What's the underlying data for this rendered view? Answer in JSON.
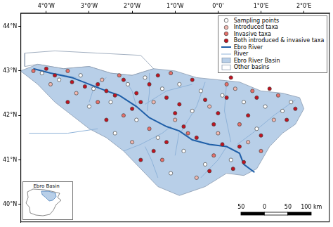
{
  "chart_data": {
    "type": "map",
    "xlim": [
      -4.6,
      2.6
    ],
    "xticks": [
      {
        "value": -4,
        "label": "4°0'W"
      },
      {
        "value": -3,
        "label": "3°0'W"
      },
      {
        "value": -2,
        "label": "2°0'W"
      },
      {
        "value": -1,
        "label": "1°0'W"
      },
      {
        "value": 0,
        "label": "0°0'"
      },
      {
        "value": 1,
        "label": "1°0'E"
      },
      {
        "value": 2,
        "label": "2°0'E"
      }
    ],
    "ylim": [
      39.6,
      44.3
    ],
    "yticks": [
      {
        "value": 40,
        "label": "40°N"
      },
      {
        "value": 41,
        "label": "41°N"
      },
      {
        "value": 42,
        "label": "42°N"
      },
      {
        "value": 43,
        "label": "43°N"
      },
      {
        "value": 44,
        "label": "44°N"
      }
    ],
    "grid": false,
    "legend": "topright",
    "series": [
      {
        "name": "Sampling points",
        "type": "scatter",
        "marker": "circle",
        "color": "#ffffff",
        "values": [
          [
            -4.1,
            42.95
          ],
          [
            -3.7,
            42.8
          ],
          [
            -3.2,
            42.9
          ],
          [
            -2.9,
            42.6
          ],
          [
            -2.5,
            42.3
          ],
          [
            -2.1,
            42.7
          ],
          [
            -1.7,
            42.85
          ],
          [
            -1.3,
            42.6
          ],
          [
            -0.9,
            42.7
          ],
          [
            -0.4,
            42.55
          ],
          [
            0.1,
            42.45
          ],
          [
            0.6,
            42.3
          ],
          [
            1.1,
            42.2
          ],
          [
            1.5,
            42.1
          ],
          [
            -1.9,
            41.9
          ],
          [
            -1.4,
            41.5
          ],
          [
            -0.8,
            41.2
          ],
          [
            -0.3,
            40.9
          ],
          [
            0.3,
            41.0
          ],
          [
            -1.1,
            40.7
          ],
          [
            -2.4,
            41.6
          ],
          [
            -3.0,
            42.2
          ],
          [
            0.9,
            41.7
          ],
          [
            -0.6,
            42.1
          ],
          [
            1.7,
            42.3
          ]
        ]
      },
      {
        "name": "Introduced taxa",
        "type": "scatter",
        "marker": "circle",
        "color": "#f2b8b0",
        "values": [
          [
            -3.9,
            42.7
          ],
          [
            -2.7,
            42.8
          ],
          [
            -1.5,
            42.3
          ],
          [
            -0.2,
            42.2
          ],
          [
            0.4,
            42.6
          ],
          [
            1.3,
            41.9
          ],
          [
            -1.0,
            41.9
          ],
          [
            -2.0,
            41.4
          ],
          [
            0.0,
            41.6
          ],
          [
            -0.5,
            40.6
          ],
          [
            -3.3,
            42.5
          ],
          [
            0.7,
            41.4
          ]
        ]
      },
      {
        "name": "Invasive taxa",
        "type": "scatter",
        "marker": "circle",
        "color": "#e8706a",
        "values": [
          [
            -4.3,
            43.0
          ],
          [
            -3.5,
            43.0
          ],
          [
            -2.3,
            42.9
          ],
          [
            -1.1,
            42.95
          ],
          [
            0.2,
            42.7
          ],
          [
            1.4,
            42.45
          ],
          [
            -2.8,
            42.3
          ],
          [
            -1.6,
            41.7
          ],
          [
            -0.7,
            41.6
          ],
          [
            0.5,
            41.8
          ],
          [
            -0.1,
            41.1
          ],
          [
            1.0,
            41.2
          ],
          [
            -1.3,
            41.0
          ],
          [
            -2.2,
            42.0
          ],
          [
            0.8,
            42.55
          ]
        ]
      },
      {
        "name": "Both introduced & invasive taxa",
        "type": "scatter",
        "marker": "circle",
        "color": "#c1121f",
        "values": [
          [
            -4.0,
            43.05
          ],
          [
            -3.8,
            42.9
          ],
          [
            -3.4,
            42.75
          ],
          [
            -3.1,
            42.65
          ],
          [
            -2.8,
            42.7
          ],
          [
            -2.6,
            42.55
          ],
          [
            -2.4,
            42.45
          ],
          [
            -2.2,
            42.8
          ],
          [
            -1.9,
            42.5
          ],
          [
            -1.8,
            42.3
          ],
          [
            -1.6,
            42.7
          ],
          [
            -1.4,
            42.9
          ],
          [
            -1.2,
            42.4
          ],
          [
            -0.9,
            42.25
          ],
          [
            -0.8,
            41.75
          ],
          [
            -0.6,
            42.8
          ],
          [
            -0.5,
            41.5
          ],
          [
            -0.3,
            42.35
          ],
          [
            0.0,
            42.05
          ],
          [
            0.1,
            41.35
          ],
          [
            0.3,
            42.85
          ],
          [
            0.5,
            41.3
          ],
          [
            0.6,
            40.95
          ],
          [
            0.7,
            42.0
          ],
          [
            0.9,
            42.4
          ],
          [
            1.0,
            41.55
          ],
          [
            1.2,
            42.6
          ],
          [
            1.6,
            41.9
          ],
          [
            1.8,
            42.15
          ],
          [
            -1.2,
            41.4
          ],
          [
            -1.5,
            41.2
          ],
          [
            -1.8,
            41.0
          ],
          [
            -2.6,
            41.9
          ],
          [
            -3.5,
            42.3
          ],
          [
            -0.2,
            40.75
          ],
          [
            0.35,
            40.8
          ],
          [
            -1.0,
            42.05
          ],
          [
            -2.0,
            42.15
          ],
          [
            -0.1,
            41.8
          ],
          [
            0.2,
            42.4
          ]
        ]
      },
      {
        "name": "Ebro River",
        "type": "line",
        "line_style": "solid",
        "color": "#1f5fa8",
        "values": [
          [
            -4.3,
            43.05
          ],
          [
            -3.9,
            42.95
          ],
          [
            -3.4,
            42.85
          ],
          [
            -3.0,
            42.7
          ],
          [
            -2.6,
            42.55
          ],
          [
            -2.3,
            42.45
          ],
          [
            -1.9,
            42.2
          ],
          [
            -1.6,
            41.95
          ],
          [
            -1.2,
            41.75
          ],
          [
            -0.9,
            41.65
          ],
          [
            -0.6,
            41.45
          ],
          [
            -0.2,
            41.35
          ],
          [
            0.2,
            41.3
          ],
          [
            0.5,
            41.15
          ],
          [
            0.6,
            40.9
          ],
          [
            0.85,
            40.72
          ]
        ]
      },
      {
        "name": "River",
        "type": "line",
        "line_style": "solid",
        "color": "#8fb3d9",
        "values": [
          [
            -2.2,
            42.85
          ],
          [
            -2.0,
            42.55
          ],
          [
            -1.9,
            42.2
          ],
          null,
          [
            -1.6,
            42.95
          ],
          [
            -1.6,
            42.5
          ],
          [
            -1.65,
            42.1
          ],
          null,
          [
            -0.6,
            42.7
          ],
          [
            -1.2,
            42.55
          ],
          [
            -1.7,
            42.25
          ],
          null,
          [
            -0.3,
            42.75
          ],
          [
            -0.5,
            42.2
          ],
          [
            -0.85,
            41.65
          ],
          null,
          [
            0.2,
            42.75
          ],
          [
            0.15,
            42.1
          ],
          [
            0.3,
            41.4
          ],
          null,
          [
            1.8,
            42.35
          ],
          [
            1.3,
            42.0
          ],
          [
            0.8,
            41.6
          ],
          [
            0.45,
            41.35
          ],
          null,
          [
            -2.2,
            41.2
          ],
          [
            -1.8,
            41.35
          ],
          [
            -1.3,
            41.6
          ],
          [
            -1.1,
            41.75
          ],
          null,
          [
            -1.4,
            40.6
          ],
          [
            -1.55,
            41.0
          ],
          [
            -1.7,
            41.3
          ],
          null,
          [
            -1.0,
            41.1
          ],
          [
            -0.9,
            41.65
          ],
          null,
          [
            -0.4,
            40.6
          ],
          [
            0.0,
            41.0
          ],
          [
            0.2,
            41.3
          ],
          null,
          [
            -3.8,
            42.95
          ],
          [
            -3.3,
            42.85
          ],
          null,
          [
            -2.6,
            42.85
          ],
          [
            -2.9,
            42.65
          ],
          null,
          [
            -3.0,
            42.3
          ],
          [
            -2.9,
            42.6
          ],
          null,
          [
            -4.4,
            41.6
          ],
          [
            -3.5,
            41.6
          ],
          [
            -2.8,
            41.7
          ]
        ]
      },
      {
        "name": "Ebro River Basin",
        "type": "area",
        "color": "#b8cfe8",
        "values": [
          [
            -4.6,
            43.0
          ],
          [
            -4.2,
            43.15
          ],
          [
            -3.6,
            43.05
          ],
          [
            -3.0,
            43.1
          ],
          [
            -2.5,
            42.95
          ],
          [
            -2.0,
            42.9
          ],
          [
            -1.5,
            43.05
          ],
          [
            -1.0,
            43.0
          ],
          [
            -0.5,
            42.85
          ],
          [
            0.0,
            42.8
          ],
          [
            0.5,
            42.75
          ],
          [
            1.0,
            42.55
          ],
          [
            1.5,
            42.5
          ],
          [
            1.9,
            42.4
          ],
          [
            2.0,
            42.15
          ],
          [
            1.8,
            41.8
          ],
          [
            1.5,
            41.6
          ],
          [
            1.2,
            41.3
          ],
          [
            0.9,
            40.8
          ],
          [
            0.6,
            40.65
          ],
          [
            0.2,
            40.7
          ],
          [
            -0.3,
            40.4
          ],
          [
            -0.9,
            40.2
          ],
          [
            -1.4,
            40.4
          ],
          [
            -1.8,
            40.8
          ],
          [
            -2.2,
            41.2
          ],
          [
            -2.6,
            41.5
          ],
          [
            -3.0,
            41.7
          ],
          [
            -3.4,
            42.0
          ],
          [
            -3.8,
            42.3
          ],
          [
            -4.2,
            42.7
          ],
          [
            -4.6,
            43.0
          ]
        ]
      },
      {
        "name": "Other basins",
        "type": "area",
        "color": "#ffffff",
        "values": [
          [
            -4.5,
            43.1
          ],
          [
            -4.2,
            43.15
          ],
          [
            -3.6,
            43.05
          ],
          [
            -3.0,
            43.1
          ],
          [
            -2.5,
            42.95
          ],
          [
            -2.0,
            42.9
          ],
          [
            -1.5,
            43.05
          ],
          [
            -1.8,
            43.35
          ],
          [
            -2.8,
            43.4
          ],
          [
            -3.8,
            43.45
          ],
          [
            -4.5,
            43.4
          ],
          [
            -4.5,
            43.1
          ]
        ]
      }
    ],
    "scale_bar": [
      {
        "value": -50,
        "label": "50"
      },
      {
        "value": 0,
        "label": "0"
      },
      {
        "value": 50,
        "label": "50"
      },
      {
        "value": 100,
        "label": "100 km"
      }
    ],
    "inset": {
      "label": "Ebro Basin"
    }
  }
}
